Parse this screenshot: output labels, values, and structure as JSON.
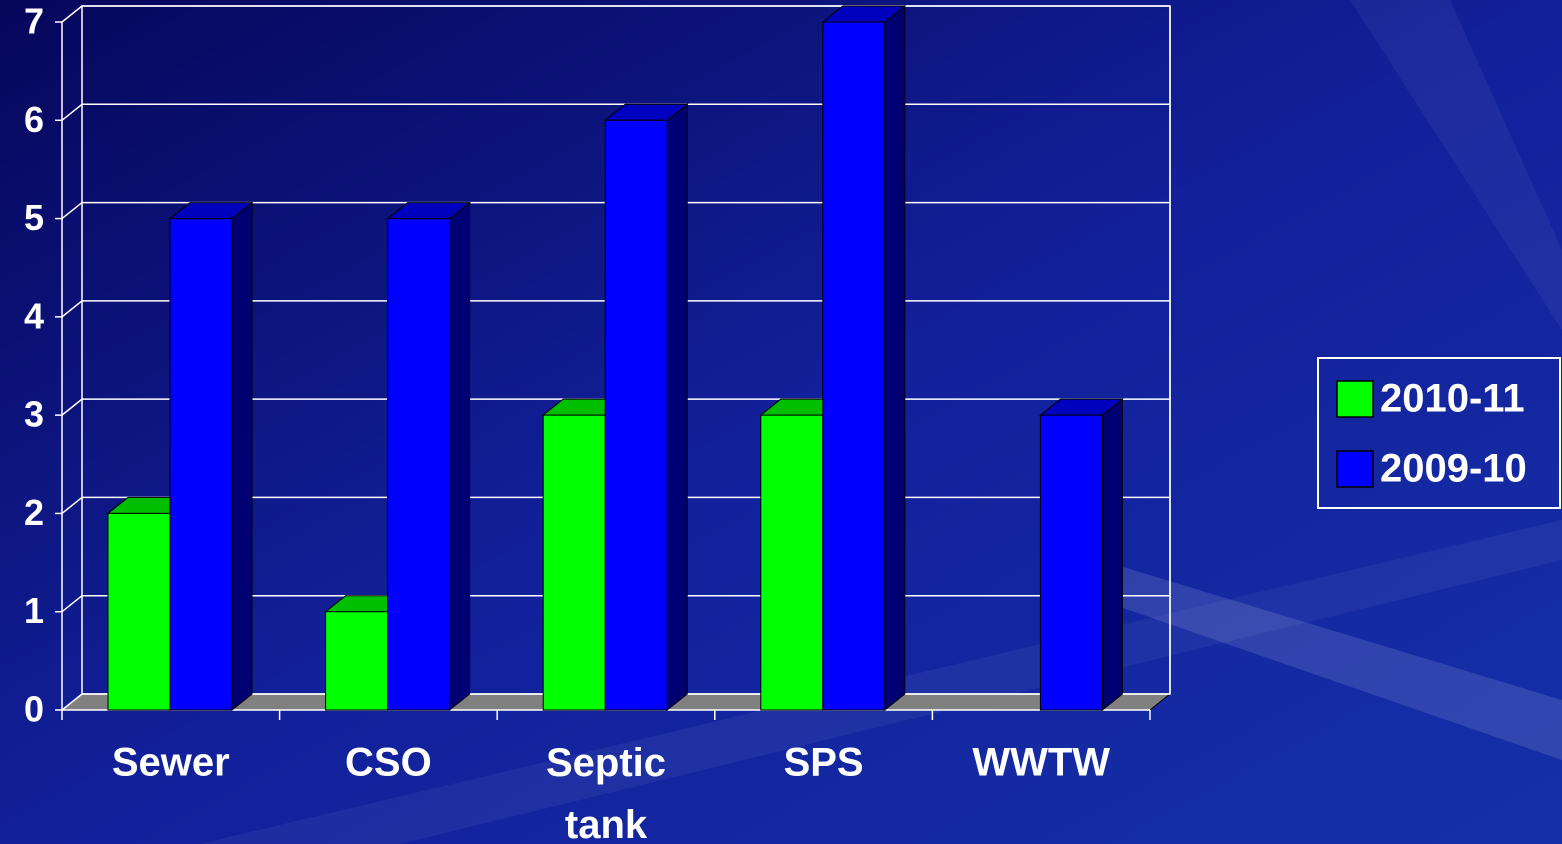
{
  "chart_data": {
    "type": "bar",
    "categories": [
      "Sewer",
      "CSO",
      "Septic tank",
      "SPS",
      "WWTW"
    ],
    "series": [
      {
        "name": "2010-11",
        "color": "#00ff00",
        "values": [
          2,
          1,
          3,
          3,
          0
        ]
      },
      {
        "name": "2009-10",
        "color": "#0000ff",
        "values": [
          5,
          5,
          6,
          7,
          3
        ]
      }
    ],
    "ylim": [
      0,
      7
    ],
    "yticks": [
      0,
      1,
      2,
      3,
      4,
      5,
      6,
      7
    ],
    "grid": true,
    "legend": "right"
  }
}
